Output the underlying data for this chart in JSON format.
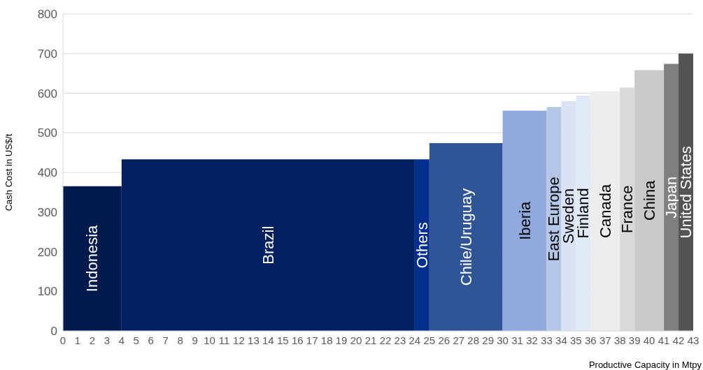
{
  "chart_data": {
    "type": "histogram",
    "xlabel": "Productive Capacity in Mtpy",
    "ylabel": "Cash Cost in US$/t",
    "categories": [
      "Indonesia",
      "Brazil",
      "Others",
      "Chile/Uruguay",
      "Iberia",
      "East Europe",
      "Sweden",
      "Finland",
      "Canada",
      "France",
      "China",
      "Japan",
      "United States"
    ],
    "bins": [
      0,
      4,
      24,
      25,
      30,
      33,
      34,
      35,
      36,
      38,
      39,
      41,
      42,
      43
    ],
    "values": [
      365,
      433,
      433,
      474,
      556,
      565,
      580,
      594,
      605,
      614,
      658,
      674,
      700
    ],
    "colors": [
      "#011a4e",
      "#002060",
      "#002f8f",
      "#2f5597",
      "#8faadc",
      "#b4c7e7",
      "#dae3f3",
      "#deebf7",
      "#ededed",
      "#d9d9d9",
      "#c9c9c9",
      "#7f7f7f",
      "#545454"
    ],
    "xlim": [
      0,
      43
    ],
    "xticks": [
      0,
      1,
      2,
      3,
      4,
      5,
      6,
      7,
      8,
      9,
      10,
      11,
      12,
      13,
      14,
      15,
      16,
      17,
      18,
      19,
      20,
      21,
      22,
      23,
      24,
      25,
      26,
      27,
      28,
      29,
      30,
      31,
      32,
      33,
      34,
      35,
      36,
      37,
      38,
      39,
      40,
      41,
      42,
      43
    ],
    "ylim": [
      0,
      800
    ],
    "yticks": [
      0,
      100,
      200,
      300,
      400,
      500,
      600,
      700,
      800
    ],
    "grid": "y"
  }
}
